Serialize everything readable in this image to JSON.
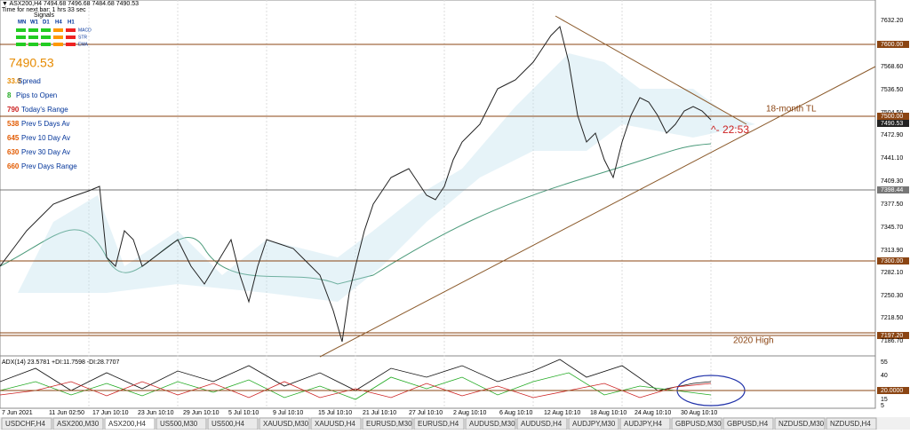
{
  "header": {
    "symbol_line": "▼ ASX200,H4  7494.68 7496.68 7484.68 7490.53",
    "timer": "Time for next bar: 1 hrs 33 sec"
  },
  "signals": {
    "title": "Signals",
    "timeframes": [
      "MN",
      "W1",
      "D1",
      "H4",
      "H1"
    ],
    "rows": [
      "MACD",
      "STR",
      "EMA"
    ]
  },
  "stats": {
    "price": "7490.53",
    "rows": [
      {
        "num": "33.0",
        "label": "Spread"
      },
      {
        "num": "8",
        "label": "Pips to Open"
      },
      {
        "num": "790",
        "label": "Today's Range"
      },
      {
        "num": "538",
        "label": "Prev 5 Days Av"
      },
      {
        "num": "645",
        "label": "Prev 10 Day Av"
      },
      {
        "num": "630",
        "label": "Prev 30 Day Av"
      },
      {
        "num": "660",
        "label": "Prev Days Range"
      }
    ]
  },
  "annotations": {
    "trendline": "18-month TL",
    "time_marker": "^- 22:53",
    "high": "2020 High"
  },
  "price_axis": [
    "7632.20",
    "7600.00",
    "7568.60",
    "7536.50",
    "7504.50",
    "7500.00",
    "7490.53",
    "7472.90",
    "7441.10",
    "7409.30",
    "7398.44",
    "7377.50",
    "7345.70",
    "7313.90",
    "7300.00",
    "7282.10",
    "7250.30",
    "7218.50",
    "7197.20",
    "7186.70"
  ],
  "indicator": {
    "label": "ADX(14) 23.5781 +DI:11.7598 -DI:28.7707",
    "axis": [
      "55",
      "40",
      "20.0000",
      "15",
      "5"
    ]
  },
  "time_axis": [
    "7 Jun 2021",
    "11 Jun 02:50",
    "17 Jun 10:10",
    "23 Jun 10:10",
    "29 Jun 10:10",
    "5 Jul 10:10",
    "9 Jul 10:10",
    "15 Jul 10:10",
    "21 Jul 10:10",
    "27 Jul 10:10",
    "2 Aug 10:10",
    "6 Aug 10:10",
    "12 Aug 10:10",
    "18 Aug 10:10",
    "24 Aug 10:10",
    "30 Aug 10:10"
  ],
  "tabs": [
    "USDCHF,H4",
    "ASX200,M30",
    "ASX200,H4",
    "US500,M30",
    "US500,H4",
    "XAUUSD,M30",
    "XAUUSD,H4",
    "EURUSD,M30",
    "EURUSD,H4",
    "AUDUSD,M30",
    "AUDUSD,H4",
    "AUDJPY,M30",
    "AUDJPY,H4",
    "GBPUSD,M30",
    "GBPUSD,H4",
    "NZDUSD,M30",
    "NZDUSD,H4"
  ]
}
